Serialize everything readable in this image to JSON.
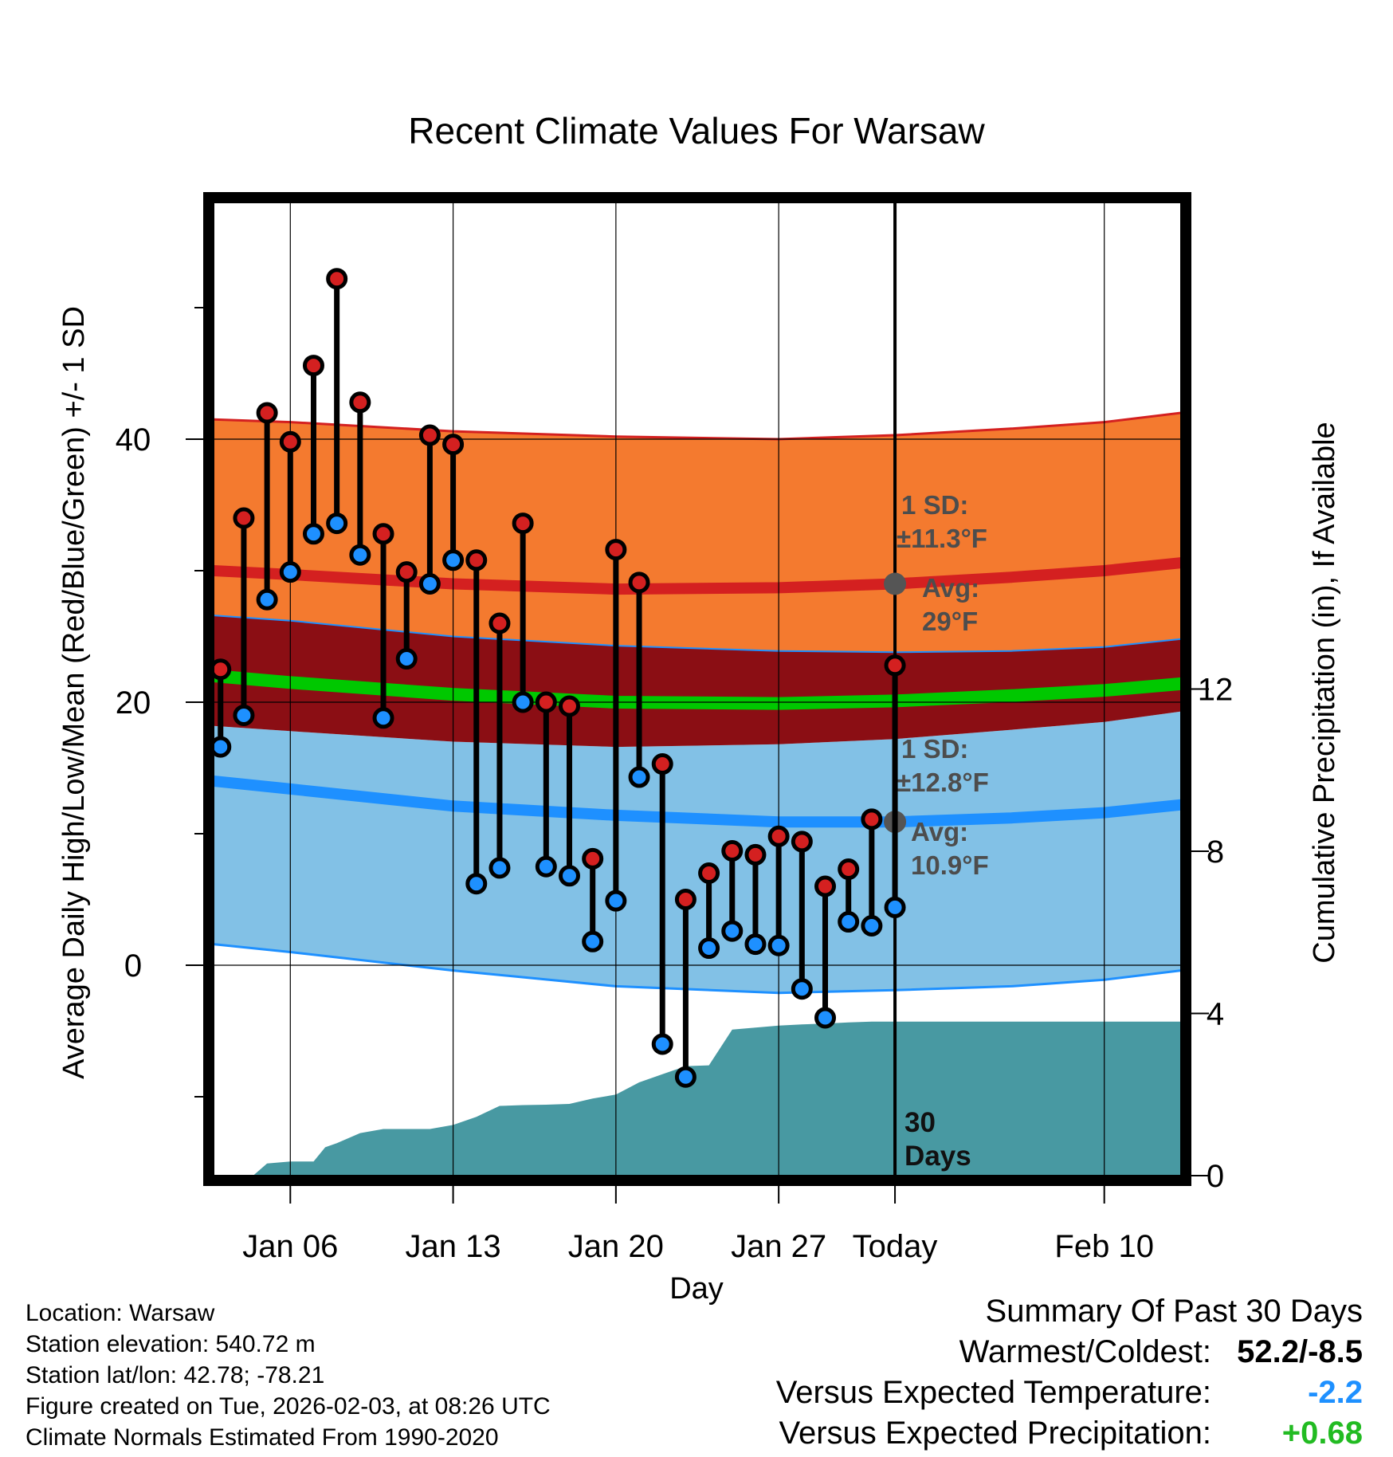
{
  "chart_data": {
    "type": "climate-range",
    "title": "Recent Climate Values For Warsaw",
    "xlabel": "Day",
    "ylabel": "Average Daily High/Low/Mean (Red/Blue/Green) +/- 1 SD",
    "y2label": "Cumulative Precipitation (in), If Available",
    "xlim": [
      2.7,
      44.3
    ],
    "ylim": [
      -16,
      58
    ],
    "y2lim": [
      0,
      24
    ],
    "today_x": 32,
    "yticks": [
      {
        "value": 40,
        "label": "40"
      },
      {
        "value": 20,
        "label": "20"
      },
      {
        "value": 0,
        "label": "0"
      }
    ],
    "yminor": [
      50,
      30,
      10,
      -10
    ],
    "y2ticks": [
      {
        "value": 12,
        "label": "12"
      },
      {
        "value": 8,
        "label": "8"
      },
      {
        "value": 4,
        "label": "4"
      },
      {
        "value": 0,
        "label": "0"
      }
    ],
    "xticks": [
      {
        "value": 6,
        "label": "Jan 06"
      },
      {
        "value": 13,
        "label": "Jan 13"
      },
      {
        "value": 20,
        "label": "Jan 20"
      },
      {
        "value": 27,
        "label": "Jan 27"
      },
      {
        "value": 32,
        "label": "Today"
      },
      {
        "value": 41,
        "label": "Feb 10"
      }
    ],
    "normals": {
      "x": [
        2.7,
        6,
        13,
        20,
        27,
        32,
        37,
        41,
        44.3
      ],
      "high_upper": [
        41.5,
        41.3,
        40.6,
        40.2,
        40.0,
        40.3,
        40.8,
        41.3,
        42.0
      ],
      "high_avg": [
        30.0,
        29.7,
        29.0,
        28.6,
        28.7,
        29.0,
        29.5,
        30.0,
        30.6
      ],
      "high_lower": [
        26.6,
        26.2,
        25.0,
        24.3,
        23.9,
        23.8,
        23.9,
        24.2,
        24.8
      ],
      "mean_avg": [
        22.0,
        21.5,
        20.6,
        20.0,
        19.9,
        20.1,
        20.5,
        20.9,
        21.4
      ],
      "low_upper": [
        18.2,
        17.8,
        17.0,
        16.6,
        16.8,
        17.2,
        17.9,
        18.5,
        19.3
      ],
      "low_avg": [
        14.0,
        13.4,
        12.1,
        11.4,
        10.9,
        10.9,
        11.2,
        11.6,
        12.2
      ],
      "low_lower": [
        1.6,
        1.0,
        -0.4,
        -1.6,
        -2.1,
        -1.9,
        -1.6,
        -1.1,
        -0.4
      ]
    },
    "series": [
      {
        "name": "High",
        "color": "#d42020",
        "values": [
          22.5,
          34.0,
          42.0,
          39.8,
          45.6,
          52.2,
          42.8,
          32.8,
          29.9,
          40.3,
          39.6,
          30.8,
          26.0,
          33.6,
          20.0,
          19.7,
          8.1,
          31.6,
          29.1,
          15.3,
          5.0,
          7.0,
          8.7,
          8.4,
          9.8,
          9.4,
          6.0,
          7.3,
          11.1,
          22.8
        ]
      },
      {
        "name": "Low",
        "color": "#1e90ff",
        "values": [
          16.6,
          19.0,
          27.8,
          29.9,
          32.8,
          33.6,
          31.2,
          18.8,
          23.3,
          29.0,
          30.8,
          6.2,
          7.4,
          20.0,
          7.5,
          6.8,
          1.8,
          4.9,
          14.3,
          -6.0,
          -8.5,
          1.3,
          2.6,
          1.6,
          1.5,
          -1.8,
          -4.0,
          3.3,
          3.0,
          4.4
        ]
      }
    ],
    "days": [
      3,
      4,
      5,
      6,
      7,
      8,
      9,
      10,
      11,
      12,
      13,
      14,
      15,
      16,
      17,
      18,
      19,
      20,
      21,
      22,
      23,
      24,
      25,
      26,
      27,
      28,
      29,
      30,
      31,
      32
    ],
    "points_x_start": 3,
    "precip": {
      "x": [
        2.7,
        4.4,
        5.0,
        6.0,
        7.0,
        7.5,
        8.0,
        9.0,
        10.0,
        11.0,
        12.0,
        13.0,
        14.0,
        15.0,
        16.0,
        17.0,
        18.0,
        19.0,
        20.0,
        21.0,
        22.0,
        23.0,
        24.0,
        25.0,
        26.0,
        27.0,
        28.0,
        29.0,
        30.0,
        31.0,
        32.0,
        44.3
      ],
      "y": [
        0,
        0,
        0.3,
        0.35,
        0.35,
        0.7,
        0.8,
        1.05,
        1.15,
        1.15,
        1.15,
        1.25,
        1.45,
        1.72,
        1.74,
        1.75,
        1.77,
        1.9,
        2.0,
        2.3,
        2.5,
        2.7,
        2.72,
        3.6,
        3.65,
        3.7,
        3.73,
        3.75,
        3.78,
        3.8,
        3.8,
        3.8
      ]
    },
    "annotations": {
      "high_sd_label": "1 SD:",
      "high_sd_value": "±11.3°F",
      "high_avg_label": "Avg:",
      "high_avg_value": "29°F",
      "low_sd_label": "1 SD:",
      "low_sd_value": "±12.8°F",
      "low_avg_label": "Avg:",
      "low_avg_value": "10.9°F",
      "period_line1": "30",
      "period_line2": "Days"
    },
    "colors": {
      "high_band": "#f47a2f",
      "high_avg_line": "#d42020",
      "overlap_band": "#8b0e14",
      "mean_line": "#00c800",
      "low_band": "#82c1e6",
      "low_avg_line": "#1e90ff",
      "precip_fill": "#4899a2",
      "marker_edge": "#000000",
      "annotation_text": "#4d4d4d",
      "avg_dot": "#555555"
    }
  },
  "info": {
    "location": "Location: Warsaw",
    "elevation": "Station elevation: 540.72 m",
    "latlon": "Station lat/lon: 42.78; -78.21",
    "created": "Figure created on Tue, 2026-02-03, at 08:26 UTC",
    "normals": "Climate Normals Estimated From 1990-2020"
  },
  "summary": {
    "title": "Summary Of Past 30 Days",
    "warm_cold_label": "Warmest/Coldest:",
    "warm_cold_value": "52.2/-8.5",
    "temp_label": "Versus Expected Temperature:",
    "temp_value": "-2.2",
    "temp_color": "#1e90ff",
    "precip_label": "Versus Expected Precipitation:",
    "precip_value": "+0.68",
    "precip_color": "#22bb22"
  }
}
